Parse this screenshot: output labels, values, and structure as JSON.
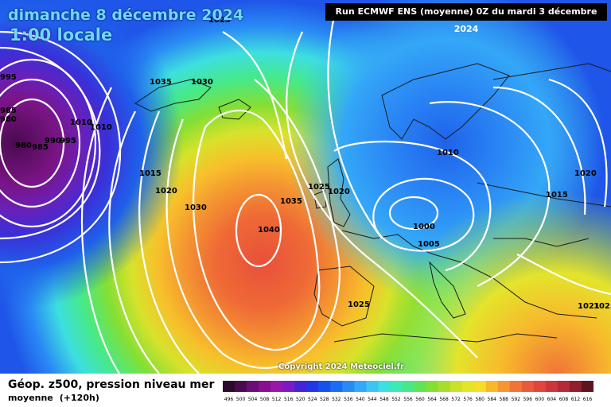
{
  "header": {
    "date_label": "dimanche 8 décembre 2024",
    "time_label": "1:00 locale",
    "run_info": "Run ECMWF ENS (moyenne) 0Z du mardi 3 décembre 2024"
  },
  "footer": {
    "copyright": "Copyright 2024 Meteociel.fr",
    "legend_title": "Géop. z500, pression niveau mer",
    "legend_subtitle": "moyenne",
    "legend_hint": "(+120h)"
  },
  "legend_scale": {
    "values": [
      "496",
      "500",
      "504",
      "508",
      "512",
      "516",
      "520",
      "524",
      "528",
      "532",
      "536",
      "540",
      "544",
      "548",
      "552",
      "556",
      "560",
      "564",
      "568",
      "572",
      "576",
      "580",
      "584",
      "588",
      "592",
      "596",
      "600",
      "604",
      "608",
      "612",
      "616"
    ],
    "colors": [
      "#2b0a2b",
      "#4a0a4f",
      "#6a0d74",
      "#86108f",
      "#9a16a8",
      "#7a1cc2",
      "#4424d4",
      "#2236e4",
      "#1552ec",
      "#1b6cf2",
      "#2a8af5",
      "#34a7f7",
      "#3cc4f2",
      "#3ddfe0",
      "#3fe9b4",
      "#47e987",
      "#5fe35c",
      "#84df35",
      "#a6de2c",
      "#c8e22b",
      "#e4e42b",
      "#f7dc2a",
      "#f7b92c",
      "#f49631",
      "#f07438",
      "#e85a3b",
      "#e0463b",
      "#cc353a",
      "#b52a36",
      "#8e1f2b",
      "#5c1520"
    ]
  },
  "isobar_labels": [
    "1035",
    "1030",
    "1015",
    "1020",
    "1030",
    "1040",
    "1035",
    "1025",
    "1020",
    "1010",
    "1000",
    "1005",
    "1015",
    "1020",
    "1025",
    "1025",
    "1025",
    "980",
    "985",
    "990",
    "995",
    "1010",
    "1010",
    "995",
    "985",
    "980",
    "1021"
  ],
  "colors": {
    "title_text": "#6fd8ff",
    "run_box_bg": "#000000",
    "contour_line": "#ffffff"
  }
}
